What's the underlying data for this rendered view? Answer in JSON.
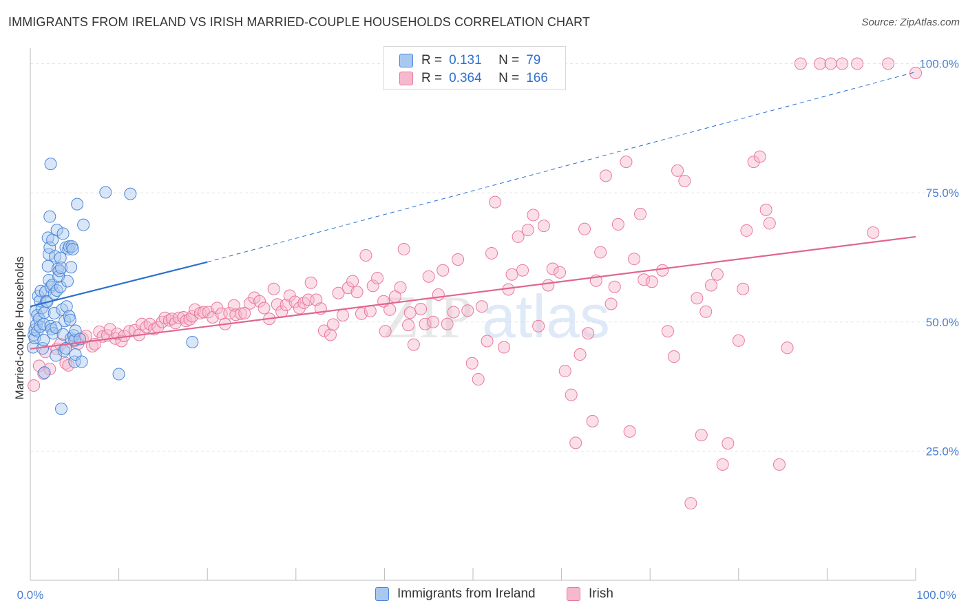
{
  "title": "IMMIGRANTS FROM IRELAND VS IRISH MARRIED-COUPLE HOUSEHOLDS CORRELATION CHART",
  "source": "Source: ZipAtlas.com",
  "legend_stats": [
    {
      "r_label": "R =",
      "r_value": "0.131",
      "n_label": "N =",
      "n_value": "79"
    },
    {
      "r_label": "R =",
      "r_value": "0.364",
      "n_label": "N =",
      "n_value": "166"
    }
  ],
  "colors": {
    "blue_fill": "#a9c8f0",
    "blue_stroke": "#4a86d8",
    "blue_line": "#2a6fd0",
    "pink_fill": "#f6b8cc",
    "pink_stroke": "#e8799c",
    "pink_line": "#e06590",
    "grid": "#e3e3e3",
    "tick_label": "#4a7fd0"
  },
  "chart_data": {
    "type": "scatter",
    "title": "IMMIGRANTS FROM IRELAND VS IRISH MARRIED-COUPLE HOUSEHOLDS CORRELATION CHART",
    "xlabel": "",
    "ylabel": "Married-couple Households",
    "xlim": [
      0,
      100
    ],
    "ylim": [
      0,
      103
    ],
    "x_tick_labels": [
      "0.0%",
      "100.0%"
    ],
    "y_ticks": [
      25,
      50,
      75,
      100
    ],
    "y_tick_labels": [
      "25.0%",
      "50.0%",
      "75.0%",
      "100.0%"
    ],
    "grid": true,
    "legend_position": "top-center",
    "series": [
      {
        "name": "Immigrants from Ireland",
        "color": "#a9c8f0",
        "r": 0.131,
        "n": 79,
        "trend": {
          "x": [
            0,
            20
          ],
          "y": [
            53.0,
            61.6
          ]
        },
        "trend_dashed": {
          "x": [
            20,
            100
          ],
          "y": [
            61.6,
            98.4
          ]
        },
        "points": [
          [
            0.3,
            45.1
          ],
          [
            0.4,
            47.5
          ],
          [
            0.5,
            46.9
          ],
          [
            0.5,
            48.5
          ],
          [
            0.6,
            52.1
          ],
          [
            0.7,
            49.5
          ],
          [
            0.8,
            51.3
          ],
          [
            0.8,
            48.2
          ],
          [
            0.9,
            55.0
          ],
          [
            1.0,
            50.6
          ],
          [
            1.1,
            49.1
          ],
          [
            1.1,
            54.1
          ],
          [
            1.2,
            56.0
          ],
          [
            1.3,
            52.7
          ],
          [
            1.4,
            44.9
          ],
          [
            1.5,
            46.5
          ],
          [
            1.5,
            49.6
          ],
          [
            1.6,
            51.8
          ],
          [
            1.6,
            40.2
          ],
          [
            1.7,
            55.8
          ],
          [
            1.8,
            54.0
          ],
          [
            1.9,
            53.9
          ],
          [
            2.0,
            66.3
          ],
          [
            2.0,
            60.8
          ],
          [
            2.1,
            63.1
          ],
          [
            2.1,
            58.1
          ],
          [
            2.2,
            70.4
          ],
          [
            2.2,
            64.4
          ],
          [
            2.3,
            49.2
          ],
          [
            2.3,
            56.8
          ],
          [
            2.3,
            80.6
          ],
          [
            2.4,
            48.6
          ],
          [
            2.5,
            65.9
          ],
          [
            2.5,
            57.2
          ],
          [
            2.6,
            47.8
          ],
          [
            2.7,
            55.5
          ],
          [
            2.7,
            51.7
          ],
          [
            2.8,
            62.7
          ],
          [
            2.9,
            48.9
          ],
          [
            2.9,
            43.5
          ],
          [
            3.0,
            56.1
          ],
          [
            3.0,
            67.8
          ],
          [
            3.1,
            60.3
          ],
          [
            3.2,
            58.8
          ],
          [
            3.3,
            59.9
          ],
          [
            3.4,
            56.8
          ],
          [
            3.4,
            62.4
          ],
          [
            3.5,
            33.2
          ],
          [
            3.5,
            60.5
          ],
          [
            3.6,
            52.4
          ],
          [
            3.7,
            67.1
          ],
          [
            3.7,
            47.6
          ],
          [
            3.8,
            44.4
          ],
          [
            3.9,
            50.2
          ],
          [
            4.0,
            64.4
          ],
          [
            4.0,
            44.9
          ],
          [
            4.1,
            53.0
          ],
          [
            4.2,
            57.9
          ],
          [
            4.3,
            64.1
          ],
          [
            4.4,
            64.6
          ],
          [
            4.4,
            51.1
          ],
          [
            4.5,
            50.4
          ],
          [
            4.6,
            60.6
          ],
          [
            4.6,
            46.8
          ],
          [
            4.7,
            64.6
          ],
          [
            4.8,
            64.1
          ],
          [
            4.9,
            47.4
          ],
          [
            5.0,
            46.5
          ],
          [
            5.0,
            42.3
          ],
          [
            5.1,
            48.3
          ],
          [
            5.1,
            43.7
          ],
          [
            5.3,
            72.8
          ],
          [
            5.6,
            46.7
          ],
          [
            5.8,
            42.3
          ],
          [
            6.0,
            68.8
          ],
          [
            8.5,
            75.1
          ],
          [
            10.0,
            39.9
          ],
          [
            11.3,
            74.8
          ],
          [
            18.3,
            46.1
          ]
        ]
      },
      {
        "name": "Irish",
        "color": "#f6b8cc",
        "r": 0.364,
        "n": 166,
        "trend": {
          "x": [
            0,
            100
          ],
          "y": [
            44.8,
            66.5
          ]
        },
        "points": [
          [
            0.4,
            37.7
          ],
          [
            1.0,
            41.5
          ],
          [
            1.5,
            40.0
          ],
          [
            1.7,
            44.2
          ],
          [
            2.2,
            40.9
          ],
          [
            3.0,
            44.8
          ],
          [
            3.4,
            45.7
          ],
          [
            4.0,
            42.0
          ],
          [
            4.3,
            41.6
          ],
          [
            4.6,
            46.1
          ],
          [
            5.0,
            46.3
          ],
          [
            5.4,
            45.8
          ],
          [
            5.9,
            46.8
          ],
          [
            6.3,
            47.3
          ],
          [
            7.0,
            45.3
          ],
          [
            7.3,
            45.7
          ],
          [
            7.8,
            48.1
          ],
          [
            8.2,
            47.2
          ],
          [
            8.7,
            47.4
          ],
          [
            9.0,
            48.6
          ],
          [
            9.6,
            46.8
          ],
          [
            9.8,
            47.7
          ],
          [
            10.3,
            46.3
          ],
          [
            10.6,
            47.3
          ],
          [
            11.2,
            48.2
          ],
          [
            11.8,
            48.4
          ],
          [
            12.3,
            47.5
          ],
          [
            12.6,
            49.6
          ],
          [
            13.1,
            49.0
          ],
          [
            13.5,
            49.6
          ],
          [
            14.0,
            48.6
          ],
          [
            14.4,
            49.0
          ],
          [
            14.9,
            50.0
          ],
          [
            15.2,
            50.8
          ],
          [
            15.7,
            50.3
          ],
          [
            16.0,
            50.6
          ],
          [
            16.4,
            49.8
          ],
          [
            16.8,
            50.8
          ],
          [
            17.3,
            50.9
          ],
          [
            17.6,
            50.2
          ],
          [
            18.0,
            50.5
          ],
          [
            18.3,
            51.1
          ],
          [
            18.6,
            52.4
          ],
          [
            19.2,
            51.7
          ],
          [
            19.6,
            51.9
          ],
          [
            20.1,
            51.9
          ],
          [
            20.6,
            50.9
          ],
          [
            21.1,
            52.7
          ],
          [
            21.6,
            51.6
          ],
          [
            22.0,
            49.6
          ],
          [
            22.5,
            51.7
          ],
          [
            23.0,
            53.2
          ],
          [
            23.2,
            51.4
          ],
          [
            23.8,
            51.6
          ],
          [
            24.2,
            51.7
          ],
          [
            24.8,
            53.6
          ],
          [
            25.3,
            54.7
          ],
          [
            25.9,
            54.0
          ],
          [
            26.4,
            52.7
          ],
          [
            27.0,
            50.6
          ],
          [
            27.5,
            56.4
          ],
          [
            27.9,
            53.4
          ],
          [
            28.4,
            52.0
          ],
          [
            28.9,
            53.3
          ],
          [
            29.3,
            55.1
          ],
          [
            29.9,
            53.9
          ],
          [
            30.4,
            52.7
          ],
          [
            30.9,
            53.7
          ],
          [
            31.4,
            54.3
          ],
          [
            31.7,
            57.6
          ],
          [
            32.3,
            54.3
          ],
          [
            32.8,
            52.6
          ],
          [
            33.2,
            48.3
          ],
          [
            33.9,
            47.5
          ],
          [
            34.2,
            49.5
          ],
          [
            34.8,
            55.6
          ],
          [
            35.3,
            51.3
          ],
          [
            35.9,
            56.6
          ],
          [
            36.4,
            57.9
          ],
          [
            36.9,
            55.8
          ],
          [
            37.4,
            51.6
          ],
          [
            37.9,
            62.9
          ],
          [
            38.4,
            52.1
          ],
          [
            38.7,
            57.0
          ],
          [
            39.2,
            58.5
          ],
          [
            39.9,
            54.0
          ],
          [
            40.1,
            48.2
          ],
          [
            40.6,
            52.4
          ],
          [
            41.2,
            54.9
          ],
          [
            41.8,
            56.7
          ],
          [
            42.2,
            64.1
          ],
          [
            42.7,
            49.4
          ],
          [
            42.9,
            51.8
          ],
          [
            43.3,
            45.6
          ],
          [
            44.1,
            52.5
          ],
          [
            44.6,
            49.6
          ],
          [
            45.0,
            58.8
          ],
          [
            45.5,
            50.0
          ],
          [
            46.1,
            55.3
          ],
          [
            46.6,
            60.0
          ],
          [
            47.1,
            49.6
          ],
          [
            47.8,
            51.9
          ],
          [
            48.3,
            62.1
          ],
          [
            49.4,
            52.2
          ],
          [
            49.9,
            42.0
          ],
          [
            50.6,
            38.9
          ],
          [
            51.0,
            53.0
          ],
          [
            51.6,
            46.3
          ],
          [
            52.1,
            63.3
          ],
          [
            52.5,
            73.2
          ],
          [
            53.5,
            45.1
          ],
          [
            54.0,
            56.3
          ],
          [
            54.4,
            59.2
          ],
          [
            55.1,
            66.5
          ],
          [
            55.6,
            60.0
          ],
          [
            56.2,
            67.8
          ],
          [
            56.8,
            70.7
          ],
          [
            57.4,
            49.2
          ],
          [
            58.0,
            68.6
          ],
          [
            58.5,
            57.1
          ],
          [
            59.0,
            60.3
          ],
          [
            59.8,
            59.6
          ],
          [
            60.4,
            40.5
          ],
          [
            61.1,
            35.9
          ],
          [
            61.6,
            26.6
          ],
          [
            62.1,
            43.7
          ],
          [
            62.6,
            68.0
          ],
          [
            63.0,
            47.8
          ],
          [
            63.5,
            30.8
          ],
          [
            63.9,
            58.0
          ],
          [
            64.4,
            63.5
          ],
          [
            65.0,
            78.3
          ],
          [
            65.6,
            53.5
          ],
          [
            66.0,
            56.8
          ],
          [
            66.4,
            68.9
          ],
          [
            67.3,
            81.0
          ],
          [
            67.7,
            28.8
          ],
          [
            68.2,
            62.2
          ],
          [
            68.9,
            70.9
          ],
          [
            69.3,
            58.2
          ],
          [
            70.2,
            57.8
          ],
          [
            71.4,
            60.0
          ],
          [
            72.0,
            48.2
          ],
          [
            72.7,
            43.3
          ],
          [
            73.1,
            79.3
          ],
          [
            73.9,
            77.3
          ],
          [
            74.6,
            14.9
          ],
          [
            75.3,
            54.6
          ],
          [
            75.8,
            28.1
          ],
          [
            76.3,
            52.0
          ],
          [
            76.9,
            57.1
          ],
          [
            77.6,
            59.2
          ],
          [
            78.2,
            22.4
          ],
          [
            78.8,
            26.5
          ],
          [
            80.0,
            46.4
          ],
          [
            80.5,
            56.4
          ],
          [
            80.9,
            67.7
          ],
          [
            81.7,
            81.0
          ],
          [
            82.4,
            82.0
          ],
          [
            83.1,
            71.7
          ],
          [
            83.5,
            69.1
          ],
          [
            84.6,
            22.4
          ],
          [
            85.5,
            45.0
          ],
          [
            87.0,
            100.0
          ],
          [
            89.2,
            100.0
          ],
          [
            90.4,
            100.0
          ],
          [
            91.7,
            100.0
          ],
          [
            93.4,
            100.0
          ],
          [
            95.2,
            67.3
          ],
          [
            96.9,
            100.0
          ],
          [
            100.0,
            98.2
          ]
        ]
      }
    ]
  }
}
